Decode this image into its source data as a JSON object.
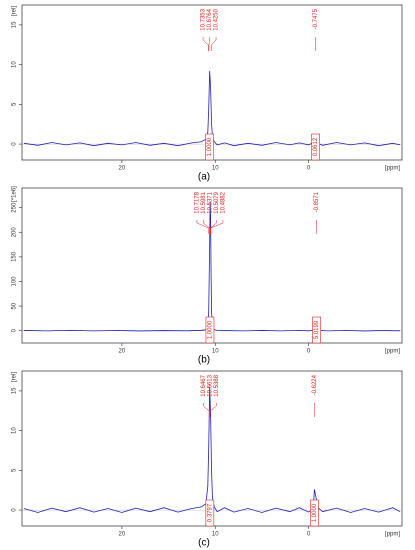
{
  "chart_data": [
    {
      "type": "line",
      "caption": "(a)",
      "y_label": "[rel]",
      "x_label": "[ppm]",
      "color": "#1f1fb4",
      "xlim": [
        30.7,
        -10
      ],
      "xticks": [
        20,
        10,
        0
      ],
      "ylim": [
        -2,
        17.5
      ],
      "yticks": [
        0,
        5,
        10,
        15
      ],
      "x": [
        30.5,
        29,
        27.5,
        26,
        24.5,
        23,
        21.5,
        20,
        18.5,
        17,
        15.5,
        14,
        12.5,
        11.5,
        11,
        10.8,
        10.7,
        10.6,
        10.5,
        10.4,
        10.3,
        10.1,
        9.8,
        9,
        8,
        6.5,
        5,
        3.5,
        2,
        1,
        0,
        -0.5,
        -0.75,
        -1,
        -1.5,
        -3,
        -4.5,
        -6,
        -7.5,
        -9,
        -9.8
      ],
      "values": [
        0.1,
        -0.15,
        0.2,
        -0.1,
        0.15,
        -0.2,
        0.1,
        -0.1,
        0.2,
        -0.15,
        0.1,
        -0.2,
        0.15,
        0.3,
        0.6,
        1.5,
        4.5,
        9.2,
        7,
        2.6,
        0.9,
        0.3,
        -0.1,
        0.15,
        -0.2,
        0.1,
        -0.15,
        0.2,
        -0.1,
        0.15,
        -0.1,
        0.2,
        -0.5,
        0.1,
        -0.15,
        0.2,
        -0.1,
        0.15,
        -0.2,
        0.1,
        -0.1
      ],
      "peaks": [
        {
          "labels": [
            10.7353,
            10.6764,
            {
              "value": 10.425,
              "label": "10.4250"
            }
          ],
          "integral": {
            "value": 1,
            "label": "1.0000"
          }
        },
        {
          "labels": [
            -0.7475
          ],
          "integral": 0.0612
        }
      ]
    },
    {
      "type": "line",
      "caption": "(b)",
      "y_label": "[*1e6]",
      "x_label": "[ppm]",
      "color": "#1f1fb4",
      "xlim": [
        30.7,
        -10
      ],
      "xticks": [
        20,
        10,
        0
      ],
      "ylim": [
        -25,
        290
      ],
      "yticks": [
        0,
        50,
        100,
        150,
        200,
        250
      ],
      "x": [
        30.5,
        28,
        25.5,
        23,
        20.5,
        18,
        15.5,
        13,
        11.5,
        11,
        10.8,
        10.7,
        10.6,
        10.55,
        10.5,
        10.45,
        10.4,
        10.3,
        10.1,
        9.8,
        9,
        7,
        5,
        3,
        1,
        0,
        -0.6,
        -0.86,
        -1.1,
        -2,
        -4,
        -6,
        -8,
        -9.8
      ],
      "values": [
        0.5,
        -0.4,
        0.6,
        -0.3,
        0.4,
        -0.5,
        0.3,
        -0.2,
        0.8,
        2,
        6,
        40,
        180,
        262,
        230,
        120,
        40,
        8,
        2,
        0.6,
        0.3,
        -0.4,
        0.5,
        -0.3,
        0.4,
        -0.2,
        0.6,
        15,
        0.8,
        -0.3,
        0.4,
        -0.5,
        0.3,
        -0.2
      ],
      "peaks": [
        {
          "labels": [
            10.7178,
            10.5981,
            10.5371,
            10.5079,
            10.4882
          ],
          "integral": {
            "value": 1,
            "label": "1.0000"
          }
        },
        {
          "labels": [
            -0.8571
          ],
          "integral": 5.0199
        }
      ]
    },
    {
      "type": "line",
      "caption": "(c)",
      "y_label": "[rel]",
      "x_label": "[ppm]",
      "color": "#1f1fb4",
      "xlim": [
        30.7,
        -10
      ],
      "xticks": [
        20,
        10,
        0
      ],
      "ylim": [
        -2,
        17.5
      ],
      "yticks": [
        0,
        5,
        10,
        15
      ],
      "x": [
        30.5,
        29,
        27.5,
        26,
        24.5,
        23,
        21.5,
        20,
        18.5,
        17,
        15.5,
        14,
        12.5,
        11.5,
        11,
        10.8,
        10.7,
        10.6,
        10.5,
        10.4,
        10.3,
        10.1,
        9.8,
        9,
        8,
        6.5,
        5,
        3.5,
        2,
        1,
        0,
        -0.5,
        -0.62,
        -1,
        -1.5,
        -3,
        -4.5,
        -6,
        -7.5,
        -9,
        -9.8
      ],
      "values": [
        0.2,
        -0.3,
        0.25,
        -0.2,
        0.3,
        -0.25,
        0.2,
        -0.3,
        0.25,
        -0.2,
        0.3,
        -0.25,
        0.2,
        0.4,
        0.8,
        3,
        8,
        15.5,
        12,
        5,
        1.5,
        0.4,
        -0.2,
        0.3,
        -0.25,
        0.2,
        -0.3,
        0.25,
        -0.2,
        0.3,
        -0.25,
        0.2,
        2.6,
        0.3,
        -0.2,
        0.25,
        -0.3,
        0.2,
        -0.25,
        0.3,
        -0.2
      ],
      "peaks": [
        {
          "labels": [
            10.6467,
            10.5613,
            10.5388
          ],
          "integral": 0.3797
        },
        {
          "labels": [
            -0.6224
          ],
          "integral": {
            "value": 1,
            "label": "1.0000"
          }
        }
      ]
    }
  ]
}
